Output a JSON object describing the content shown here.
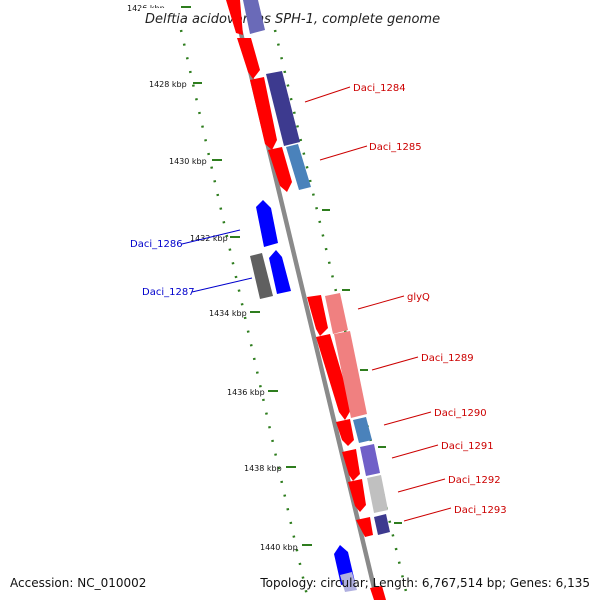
{
  "genome_title": "Delftia acidovorans SPH-1, complete genome",
  "footer": {
    "accession": "Accession: NC_010002",
    "topology": "Topology: circular; Length: 6,767,514 bp; Genes: 6,135"
  },
  "ticks": [
    "1426 kbp",
    "1428 kbp",
    "1430 kbp",
    "1432 kbp",
    "1434 kbp",
    "1436 kbp",
    "1438 kbp",
    "1440 kbp"
  ],
  "gene_labels": [
    {
      "name": "Daci_1284",
      "strand": "forward"
    },
    {
      "name": "Daci_1285",
      "strand": "forward"
    },
    {
      "name": "Daci_1286",
      "strand": "reverse"
    },
    {
      "name": "Daci_1287",
      "strand": "reverse"
    },
    {
      "name": "glyQ",
      "strand": "forward"
    },
    {
      "name": "Daci_1289",
      "strand": "forward"
    },
    {
      "name": "Daci_1290",
      "strand": "forward"
    },
    {
      "name": "Daci_1291",
      "strand": "forward"
    },
    {
      "name": "Daci_1292",
      "strand": "forward"
    },
    {
      "name": "Daci_1293",
      "strand": "forward"
    }
  ],
  "colors": {
    "forward_strand": "#ff0000",
    "reverse_strand": "#0000ff",
    "forward_label": "#cc0000",
    "reverse_label": "#0000cc",
    "backbone": "#808080",
    "tick_marks": "#2e7d1e"
  }
}
